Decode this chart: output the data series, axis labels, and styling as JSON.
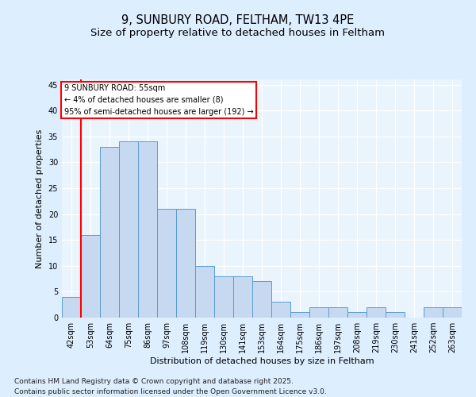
{
  "title_line1": "9, SUNBURY ROAD, FELTHAM, TW13 4PE",
  "title_line2": "Size of property relative to detached houses in Feltham",
  "xlabel": "Distribution of detached houses by size in Feltham",
  "ylabel": "Number of detached properties",
  "categories": [
    "42sqm",
    "53sqm",
    "64sqm",
    "75sqm",
    "86sqm",
    "97sqm",
    "108sqm",
    "119sqm",
    "130sqm",
    "141sqm",
    "153sqm",
    "164sqm",
    "175sqm",
    "186sqm",
    "197sqm",
    "208sqm",
    "219sqm",
    "230sqm",
    "241sqm",
    "252sqm",
    "263sqm"
  ],
  "values": [
    4,
    16,
    33,
    34,
    34,
    21,
    21,
    10,
    8,
    8,
    7,
    3,
    1,
    2,
    2,
    1,
    2,
    1,
    0,
    2,
    2
  ],
  "bar_color": "#c6d9f0",
  "bar_edge_color": "#5b9bd5",
  "red_line_index": 1,
  "annotation_title": "9 SUNBURY ROAD: 55sqm",
  "annotation_line1": "← 4% of detached houses are smaller (8)",
  "annotation_line2": "95% of semi-detached houses are larger (192) →",
  "annotation_box_color": "white",
  "annotation_box_edge": "red",
  "ylim": [
    0,
    46
  ],
  "yticks": [
    0,
    5,
    10,
    15,
    20,
    25,
    30,
    35,
    40,
    45
  ],
  "footer_line1": "Contains HM Land Registry data © Crown copyright and database right 2025.",
  "footer_line2": "Contains public sector information licensed under the Open Government Licence v3.0.",
  "bg_color": "#ddeeff",
  "plot_bg_color": "#eaf4fd",
  "grid_color": "#ffffff",
  "title_fontsize": 10.5,
  "subtitle_fontsize": 9.5,
  "tick_fontsize": 7,
  "label_fontsize": 8,
  "footer_fontsize": 6.5
}
